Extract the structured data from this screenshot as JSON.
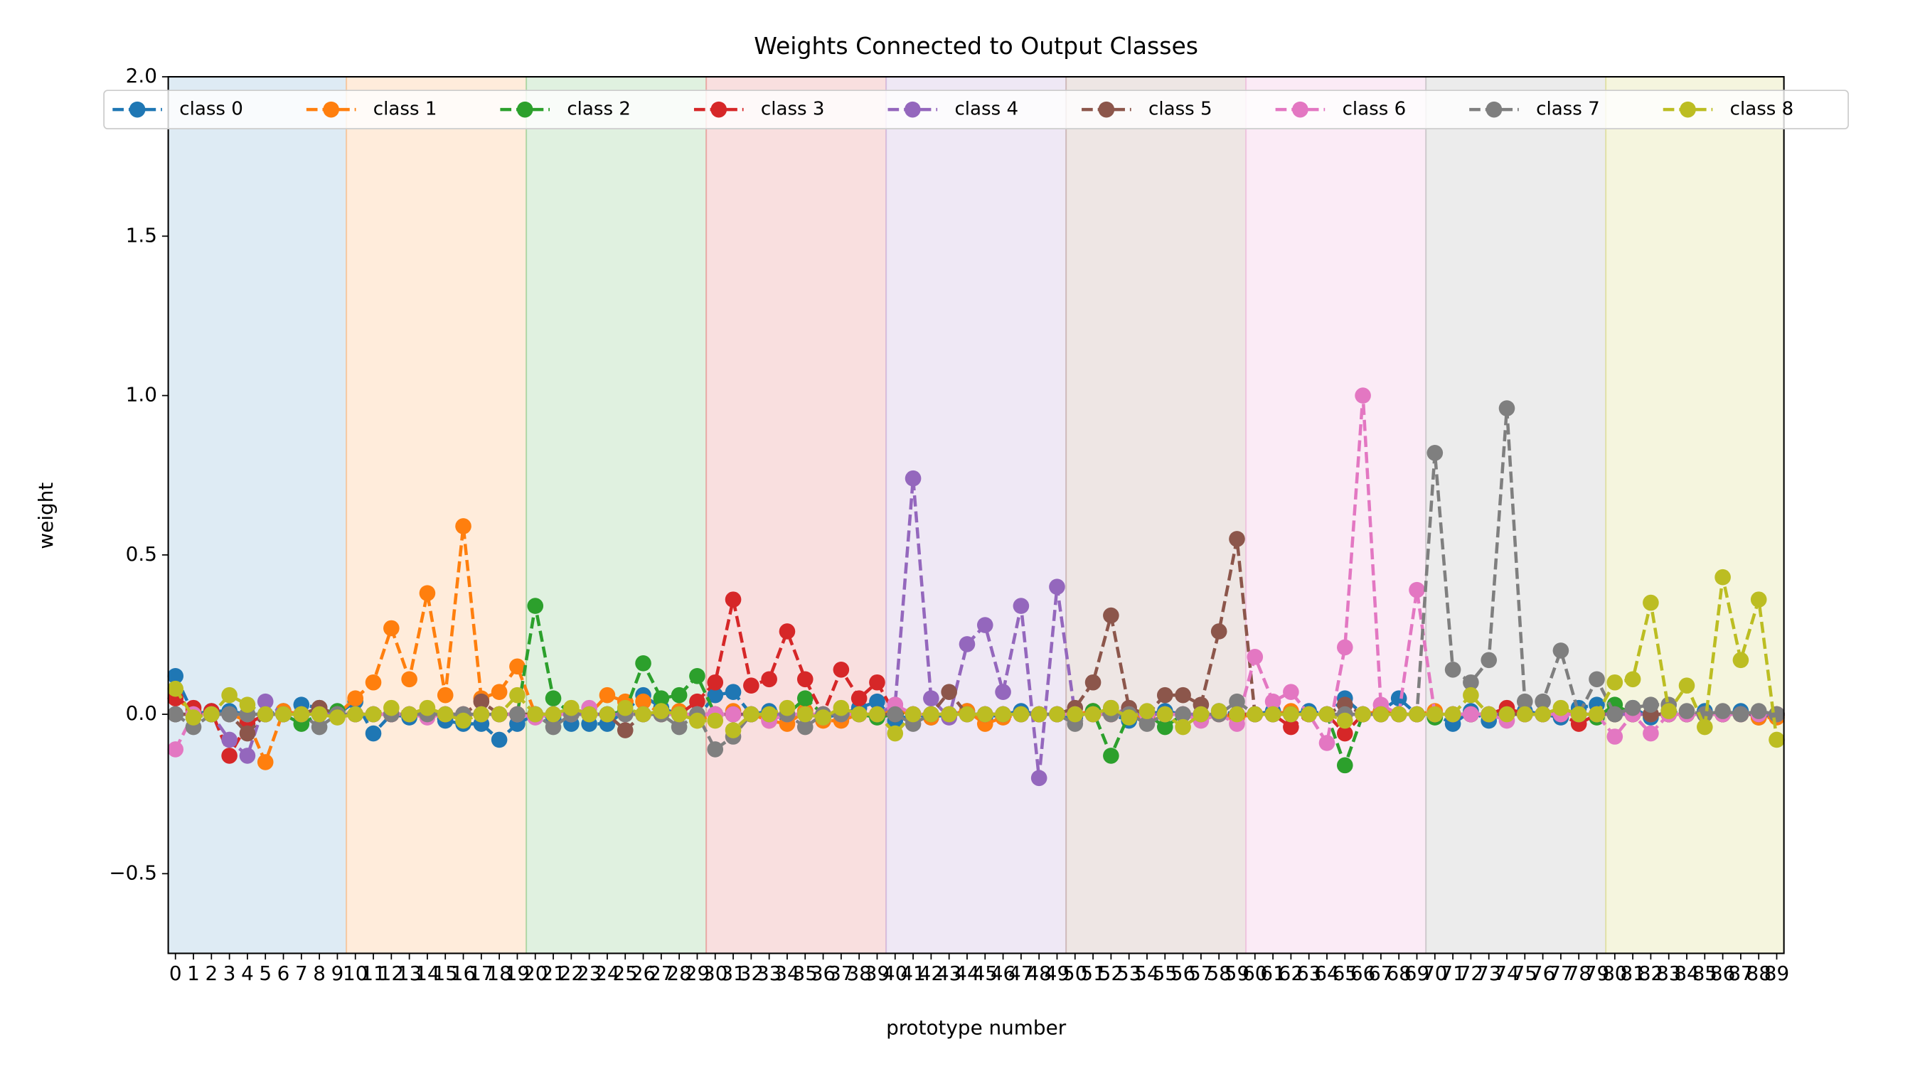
{
  "chart_data": {
    "type": "line",
    "title": "Weights Connected to Output Classes",
    "x_label": "prototype number",
    "y_label": "weight",
    "x": [
      0,
      1,
      2,
      3,
      4,
      5,
      6,
      7,
      8,
      9,
      10,
      11,
      12,
      13,
      14,
      15,
      16,
      17,
      18,
      19,
      20,
      21,
      22,
      23,
      24,
      25,
      26,
      27,
      28,
      29,
      30,
      31,
      32,
      33,
      34,
      35,
      36,
      37,
      38,
      39,
      40,
      41,
      42,
      43,
      44,
      45,
      46,
      47,
      48,
      49,
      50,
      51,
      52,
      53,
      54,
      55,
      56,
      57,
      58,
      59,
      60,
      61,
      62,
      63,
      64,
      65,
      66,
      67,
      68,
      69,
      70,
      71,
      72,
      73,
      74,
      75,
      76,
      77,
      78,
      79,
      80,
      81,
      82,
      83,
      84,
      85,
      86,
      87,
      88,
      89
    ],
    "xticks": [
      0,
      1,
      2,
      3,
      4,
      5,
      6,
      7,
      8,
      9,
      10,
      11,
      12,
      13,
      14,
      15,
      16,
      17,
      18,
      19,
      20,
      21,
      22,
      23,
      24,
      25,
      26,
      27,
      28,
      29,
      30,
      31,
      32,
      33,
      34,
      35,
      36,
      37,
      38,
      39,
      40,
      41,
      42,
      43,
      44,
      45,
      46,
      47,
      48,
      49,
      50,
      51,
      52,
      53,
      54,
      55,
      56,
      57,
      58,
      59,
      60,
      61,
      62,
      63,
      64,
      65,
      66,
      67,
      68,
      69,
      70,
      71,
      72,
      73,
      74,
      75,
      76,
      77,
      78,
      79,
      80,
      81,
      82,
      83,
      84,
      85,
      86,
      87,
      88,
      89
    ],
    "xlim": [
      -0.4,
      89.4
    ],
    "ylim": [
      -0.75,
      2.0
    ],
    "yticks": [
      {
        "value": -0.5,
        "label": "−0.5"
      },
      {
        "value": 0.0,
        "label": "0.0"
      },
      {
        "value": 0.5,
        "label": "0.5"
      },
      {
        "value": 1.0,
        "label": "1.0"
      },
      {
        "value": 1.5,
        "label": "1.5"
      },
      {
        "value": 2.0,
        "label": "2.0"
      }
    ],
    "grid": false,
    "legend": "upper center",
    "line_style": "dashed",
    "marker": "circle",
    "series": [
      {
        "name": "class 0",
        "color": "#1f77b4",
        "values": [
          0.12,
          0.0,
          0.01,
          0.01,
          0.0,
          0.0,
          0.01,
          0.03,
          0.02,
          0.0,
          0.04,
          -0.06,
          0.0,
          -0.01,
          0.0,
          -0.02,
          -0.03,
          -0.03,
          -0.08,
          -0.03,
          0.0,
          -0.01,
          -0.03,
          -0.03,
          -0.03,
          0.01,
          0.06,
          0.02,
          0.0,
          -0.01,
          0.06,
          0.07,
          0.0,
          0.01,
          -0.01,
          0.01,
          -0.01,
          0.0,
          0.02,
          0.04,
          -0.02,
          0.0,
          -0.01,
          0.0,
          0.01,
          -0.01,
          0.0,
          0.01,
          0.0,
          0.0,
          -0.01,
          0.01,
          0.0,
          -0.02,
          0.0,
          0.01,
          0.0,
          -0.01,
          0.01,
          0.0,
          0.0,
          0.01,
          0.0,
          0.01,
          0.0,
          0.05,
          0.0,
          0.01,
          0.05,
          0.0,
          0.0,
          -0.03,
          0.01,
          -0.02,
          0.0,
          0.01,
          0.0,
          -0.01,
          0.02,
          0.03,
          0.0,
          0.02,
          -0.01,
          0.01,
          0.0,
          0.01,
          0.0,
          0.01,
          -0.01,
          0.0
        ]
      },
      {
        "name": "class 1",
        "color": "#ff7f0e",
        "values": [
          0.05,
          0.01,
          0.0,
          0.0,
          -0.02,
          -0.15,
          0.01,
          0.0,
          0.02,
          0.0,
          0.05,
          0.1,
          0.27,
          0.11,
          0.38,
          0.06,
          0.59,
          0.05,
          0.07,
          0.15,
          0.0,
          0.0,
          0.01,
          0.0,
          0.06,
          0.04,
          0.04,
          0.0,
          0.01,
          -0.02,
          0.0,
          0.01,
          0.0,
          -0.02,
          -0.03,
          0.01,
          -0.02,
          -0.02,
          0.0,
          0.0,
          0.01,
          0.0,
          -0.01,
          0.0,
          0.01,
          -0.03,
          -0.01,
          0.0,
          0.0,
          0.0,
          0.0,
          0.01,
          0.0,
          0.0,
          -0.01,
          0.0,
          0.0,
          0.0,
          0.0,
          -0.01,
          0.0,
          0.0,
          0.01,
          0.0,
          0.0,
          0.0,
          0.0,
          0.01,
          0.0,
          0.0,
          0.01,
          0.0,
          0.0,
          0.0,
          0.0,
          0.0,
          0.0,
          0.01,
          0.0,
          0.0,
          0.01,
          0.0,
          0.0,
          0.0,
          0.0,
          0.0,
          0.0,
          0.0,
          -0.01,
          -0.01
        ]
      },
      {
        "name": "class 2",
        "color": "#2ca02c",
        "values": [
          0.0,
          0.0,
          0.0,
          0.0,
          0.0,
          0.0,
          0.0,
          -0.03,
          0.0,
          0.01,
          0.0,
          0.0,
          0.0,
          0.0,
          0.0,
          0.0,
          0.0,
          0.0,
          0.0,
          0.0,
          0.34,
          0.05,
          0.0,
          0.0,
          0.0,
          0.01,
          0.16,
          0.05,
          0.06,
          0.12,
          0.0,
          0.0,
          0.0,
          0.0,
          0.0,
          0.05,
          0.0,
          0.0,
          0.0,
          -0.01,
          0.0,
          0.0,
          0.0,
          0.0,
          0.0,
          0.0,
          0.0,
          0.0,
          0.0,
          0.0,
          0.0,
          0.01,
          -0.13,
          0.0,
          0.0,
          -0.04,
          0.0,
          0.0,
          0.0,
          0.0,
          0.0,
          0.0,
          0.0,
          0.0,
          0.0,
          -0.16,
          0.0,
          0.0,
          0.0,
          0.0,
          -0.01,
          0.0,
          0.0,
          0.0,
          0.0,
          0.0,
          0.0,
          0.0,
          0.0,
          -0.01,
          0.03,
          0.0,
          0.0,
          0.0,
          0.0,
          0.0,
          0.0,
          0.0,
          0.0,
          0.0
        ]
      },
      {
        "name": "class 3",
        "color": "#d62728",
        "values": [
          0.05,
          0.02,
          0.01,
          -0.13,
          -0.03,
          0.0,
          0.0,
          0.0,
          0.0,
          0.0,
          0.0,
          0.0,
          0.0,
          0.0,
          0.0,
          0.0,
          0.0,
          0.0,
          0.0,
          0.0,
          0.0,
          0.0,
          0.0,
          0.0,
          0.0,
          0.0,
          0.0,
          0.0,
          0.0,
          0.04,
          0.1,
          0.36,
          0.09,
          0.11,
          0.26,
          0.11,
          0.0,
          0.14,
          0.05,
          0.1,
          0.0,
          0.0,
          0.0,
          0.0,
          0.0,
          0.0,
          0.0,
          0.0,
          0.0,
          0.0,
          0.0,
          0.0,
          0.0,
          0.0,
          0.0,
          0.0,
          0.0,
          0.0,
          0.0,
          0.0,
          0.0,
          0.0,
          -0.04,
          0.0,
          0.0,
          -0.06,
          0.0,
          0.0,
          0.0,
          0.0,
          0.0,
          0.0,
          0.0,
          0.0,
          0.02,
          0.0,
          0.0,
          0.0,
          -0.03,
          0.0,
          0.0,
          0.0,
          0.0,
          0.0,
          0.0,
          0.0,
          0.0,
          0.0,
          0.0,
          0.0
        ]
      },
      {
        "name": "class 4",
        "color": "#9467bd",
        "values": [
          0.0,
          0.0,
          0.0,
          -0.08,
          -0.13,
          0.04,
          0.0,
          0.0,
          0.0,
          0.0,
          0.0,
          0.0,
          0.0,
          0.0,
          0.0,
          0.0,
          0.0,
          0.0,
          0.0,
          0.0,
          0.0,
          0.0,
          0.0,
          0.0,
          0.0,
          0.0,
          0.0,
          0.0,
          0.0,
          0.0,
          0.0,
          0.0,
          0.0,
          0.0,
          0.0,
          0.0,
          -0.01,
          0.0,
          0.0,
          0.0,
          0.03,
          0.74,
          0.05,
          -0.01,
          0.22,
          0.28,
          0.07,
          0.34,
          -0.2,
          0.4,
          0.0,
          0.0,
          0.02,
          0.0,
          0.0,
          0.0,
          0.0,
          0.0,
          0.0,
          0.0,
          0.0,
          0.0,
          0.0,
          0.0,
          0.0,
          0.0,
          0.0,
          0.0,
          0.0,
          0.0,
          0.0,
          0.0,
          0.0,
          0.0,
          0.0,
          0.0,
          0.0,
          0.0,
          0.0,
          0.0,
          0.0,
          0.0,
          0.0,
          0.0,
          0.0,
          0.0,
          0.0,
          0.0,
          0.0,
          0.0
        ]
      },
      {
        "name": "class 5",
        "color": "#8c564b",
        "values": [
          0.0,
          0.0,
          0.0,
          0.0,
          -0.06,
          0.0,
          0.0,
          0.0,
          0.02,
          0.0,
          0.0,
          0.0,
          0.0,
          0.0,
          0.0,
          0.0,
          0.0,
          0.04,
          0.0,
          0.0,
          0.0,
          0.0,
          0.0,
          0.0,
          0.0,
          -0.05,
          0.0,
          0.0,
          0.0,
          0.0,
          0.0,
          0.0,
          0.0,
          0.0,
          0.0,
          0.0,
          0.0,
          0.0,
          0.0,
          0.0,
          0.0,
          0.0,
          0.0,
          0.07,
          0.0,
          0.0,
          0.0,
          0.0,
          0.0,
          0.0,
          0.02,
          0.1,
          0.31,
          0.02,
          0.0,
          0.06,
          0.06,
          0.03,
          0.26,
          0.55,
          0.0,
          0.0,
          0.0,
          0.0,
          0.0,
          0.03,
          0.0,
          0.0,
          0.0,
          0.0,
          0.0,
          0.0,
          0.0,
          0.0,
          0.0,
          0.0,
          0.0,
          0.0,
          0.0,
          0.0,
          0.0,
          0.0,
          0.0,
          0.0,
          0.0,
          0.0,
          0.0,
          0.0,
          0.0,
          0.0
        ]
      },
      {
        "name": "class 6",
        "color": "#e377c2",
        "values": [
          -0.11,
          0.0,
          0.0,
          0.0,
          0.0,
          0.0,
          0.0,
          0.0,
          0.0,
          0.0,
          0.0,
          0.0,
          0.0,
          0.0,
          -0.01,
          0.0,
          0.0,
          0.0,
          0.0,
          0.0,
          -0.01,
          0.0,
          0.0,
          0.02,
          0.0,
          0.0,
          0.0,
          0.0,
          0.0,
          0.0,
          0.0,
          0.0,
          0.0,
          -0.02,
          0.0,
          0.0,
          0.0,
          0.0,
          0.0,
          0.0,
          0.03,
          0.0,
          0.0,
          0.0,
          0.0,
          0.0,
          0.0,
          0.0,
          0.0,
          0.0,
          0.0,
          0.0,
          0.0,
          0.0,
          0.0,
          0.0,
          0.0,
          -0.02,
          0.0,
          -0.03,
          0.18,
          0.04,
          0.07,
          0.0,
          -0.09,
          0.21,
          1.0,
          0.03,
          0.0,
          0.39,
          0.0,
          0.0,
          0.0,
          0.0,
          -0.02,
          0.0,
          0.0,
          0.0,
          0.0,
          0.0,
          -0.07,
          0.0,
          -0.06,
          0.0,
          0.0,
          0.0,
          0.0,
          0.0,
          0.0,
          0.0
        ]
      },
      {
        "name": "class 7",
        "color": "#7f7f7f",
        "values": [
          0.0,
          -0.04,
          0.0,
          0.0,
          0.0,
          0.0,
          0.0,
          0.0,
          -0.04,
          0.0,
          0.0,
          0.0,
          0.0,
          0.0,
          0.0,
          0.0,
          0.0,
          0.0,
          0.0,
          0.0,
          0.0,
          -0.04,
          0.0,
          0.0,
          0.0,
          0.0,
          0.0,
          0.0,
          -0.04,
          0.0,
          -0.11,
          -0.07,
          0.0,
          0.0,
          0.0,
          -0.04,
          0.0,
          0.0,
          0.0,
          0.0,
          0.0,
          -0.03,
          0.0,
          0.0,
          0.0,
          0.0,
          0.0,
          0.0,
          0.0,
          0.0,
          -0.03,
          0.0,
          0.0,
          0.0,
          -0.03,
          0.0,
          0.0,
          0.0,
          0.0,
          0.04,
          0.0,
          0.0,
          0.0,
          0.0,
          0.0,
          0.0,
          0.0,
          0.0,
          0.0,
          0.0,
          0.82,
          0.14,
          0.1,
          0.17,
          0.96,
          0.04,
          0.04,
          0.2,
          0.0,
          0.11,
          0.0,
          0.02,
          0.03,
          0.03,
          0.01,
          0.0,
          0.01,
          0.0,
          0.01,
          0.0
        ]
      },
      {
        "name": "class 8",
        "color": "#bcbd22",
        "values": [
          0.08,
          -0.01,
          0.0,
          0.06,
          0.03,
          0.0,
          0.0,
          0.0,
          0.0,
          -0.01,
          0.0,
          0.0,
          0.02,
          0.0,
          0.02,
          0.0,
          -0.02,
          0.0,
          0.0,
          0.06,
          0.0,
          0.0,
          0.02,
          0.0,
          0.0,
          0.02,
          0.0,
          0.01,
          0.0,
          -0.02,
          -0.02,
          -0.05,
          0.0,
          0.0,
          0.02,
          0.0,
          -0.01,
          0.02,
          0.0,
          0.0,
          -0.06,
          0.0,
          0.0,
          0.0,
          0.0,
          0.0,
          0.0,
          0.0,
          0.0,
          0.0,
          0.0,
          0.0,
          0.02,
          -0.01,
          0.01,
          0.0,
          -0.04,
          0.0,
          0.01,
          0.0,
          0.0,
          0.0,
          0.0,
          0.0,
          0.0,
          -0.02,
          0.0,
          0.0,
          0.0,
          0.0,
          0.0,
          0.0,
          0.06,
          0.0,
          0.0,
          0.0,
          0.0,
          0.02,
          0.0,
          0.0,
          0.1,
          0.11,
          0.35,
          0.01,
          0.09,
          -0.04,
          0.43,
          0.17,
          0.36,
          -0.08
        ]
      }
    ]
  }
}
